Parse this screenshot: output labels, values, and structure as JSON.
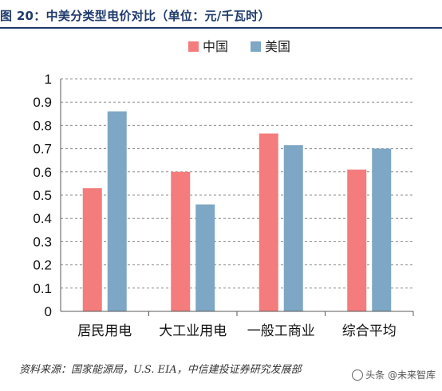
{
  "header": {
    "title": "图 20：中美分类型电价对比（单位：元/千瓦时）"
  },
  "chart_data": {
    "type": "bar",
    "title": "图 20：中美分类型电价对比（单位：元/千瓦时）",
    "xlabel": "",
    "ylabel": "",
    "categories": [
      "居民用电",
      "大工业用电",
      "一般工商业",
      "综合平均"
    ],
    "series": [
      {
        "name": "中国",
        "color": "#f47c7c",
        "values": [
          0.53,
          0.6,
          0.765,
          0.61
        ]
      },
      {
        "name": "美国",
        "color": "#7da7c4",
        "values": [
          0.86,
          0.46,
          0.715,
          0.7
        ]
      }
    ],
    "ylim": [
      0,
      1
    ],
    "yticks": [
      "0",
      "0.1",
      "0.2",
      "0.3",
      "0.4",
      "0.5",
      "0.6",
      "0.7",
      "0.8",
      "0.9",
      "1"
    ],
    "grid": true,
    "legend_position": "top-center"
  },
  "footer": {
    "source": "资料来源：国家能源局，U.S. EIA，中信建投证券研究发展部",
    "watermark": "头条 @未来智库"
  }
}
